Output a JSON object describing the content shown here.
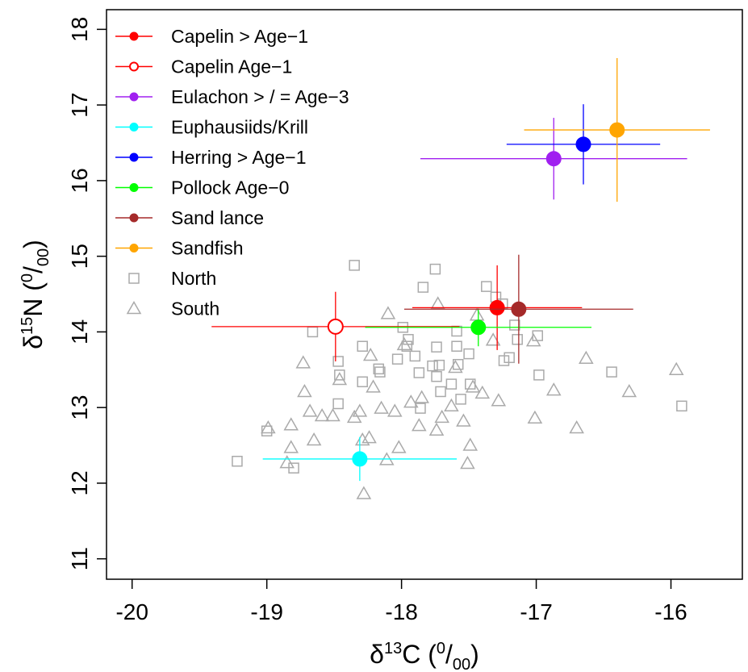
{
  "chart_data": {
    "type": "scatter",
    "xlabel": [
      "δ",
      "13",
      "C (",
      "0",
      "/",
      "00",
      ")"
    ],
    "ylabel": [
      "δ",
      "15",
      "N (",
      "0",
      "/",
      "00",
      ")"
    ],
    "xlim": [
      -20.19,
      -15.47
    ],
    "ylim": [
      10.73,
      18.26
    ],
    "xticks": [
      -20,
      -19,
      -18,
      -17,
      -16
    ],
    "yticks": [
      11,
      12,
      13,
      14,
      15,
      16,
      17,
      18
    ],
    "legend": "top-left",
    "series": [
      {
        "name": "Capelin > Age−1",
        "color": "#ff0000",
        "marker": "filled-circle",
        "x": [
          -17.29
        ],
        "y": [
          14.32
        ],
        "xerr": [
          0.63
        ],
        "yerr": [
          0.56
        ]
      },
      {
        "name": "Capelin Age−1",
        "color": "#ff0000",
        "marker": "open-circle",
        "x": [
          -18.49
        ],
        "y": [
          14.07
        ],
        "xerr": [
          0.92
        ],
        "yerr": [
          0.46
        ]
      },
      {
        "name": "Eulachon > / = Age−3",
        "color": "#a020f0",
        "marker": "filled-circle",
        "x": [
          -16.87
        ],
        "y": [
          16.29
        ],
        "xerr": [
          0.99
        ],
        "yerr": [
          0.54
        ]
      },
      {
        "name": "Euphausiids/Krill",
        "color": "#00ffff",
        "marker": "filled-circle",
        "x": [
          -18.31
        ],
        "y": [
          12.32
        ],
        "xerr": [
          0.72
        ],
        "yerr": [
          0.29
        ]
      },
      {
        "name": "Herring > Age−1",
        "color": "#0000ff",
        "marker": "filled-circle",
        "x": [
          -16.65
        ],
        "y": [
          16.48
        ],
        "xerr": [
          0.57
        ],
        "yerr": [
          0.53
        ]
      },
      {
        "name": "Pollock Age−0",
        "color": "#00ff00",
        "marker": "filled-circle",
        "x": [
          -17.43
        ],
        "y": [
          14.06
        ],
        "xerr": [
          0.84
        ],
        "yerr": [
          0.25
        ]
      },
      {
        "name": "Sand lance",
        "color": "#a52a2a",
        "marker": "filled-circle",
        "x": [
          -17.13
        ],
        "y": [
          14.3
        ],
        "xerr": [
          0.85
        ],
        "yerr": [
          0.72
        ]
      },
      {
        "name": "Sandfish",
        "color": "#ffa500",
        "marker": "filled-circle",
        "x": [
          -16.4
        ],
        "y": [
          16.67
        ],
        "xerr": [
          0.69
        ],
        "yerr": [
          0.95
        ]
      },
      {
        "name": "North",
        "color": "#aaaaaa",
        "marker": "square",
        "x": [
          -19.22,
          -19.0,
          -18.66,
          -18.47,
          -18.46,
          -18.47,
          -18.35,
          -18.29,
          -18.17,
          -18.29,
          -18.03,
          -17.99,
          -17.95,
          -17.87,
          -17.74,
          -17.96,
          -17.86,
          -17.74,
          -17.72,
          -17.77,
          -17.71,
          -17.59,
          -17.59,
          -17.5,
          -17.58,
          -17.49,
          -17.63,
          -17.56,
          -17.37,
          -17.3,
          -17.25,
          -17.2,
          -17.24,
          -17.16,
          -17.14,
          -16.99,
          -16.98,
          -16.44,
          -15.92,
          -18.8,
          -17.84,
          -17.75,
          -17.9,
          -18.16
        ],
        "y": [
          12.29,
          12.69,
          14.0,
          13.61,
          13.43,
          13.05,
          14.88,
          13.81,
          13.51,
          13.34,
          13.64,
          14.06,
          13.9,
          13.46,
          13.41,
          13.81,
          12.99,
          13.8,
          13.56,
          13.55,
          13.21,
          14.01,
          13.81,
          13.71,
          13.57,
          13.31,
          13.31,
          13.11,
          14.6,
          14.46,
          14.37,
          13.66,
          13.62,
          14.09,
          13.9,
          13.95,
          13.43,
          13.47,
          13.02,
          12.2,
          14.59,
          14.83,
          13.68,
          13.47
        ]
      },
      {
        "name": "South",
        "color": "#aaaaaa",
        "marker": "triangle",
        "x": [
          -18.99,
          -18.82,
          -18.82,
          -18.73,
          -18.72,
          -18.68,
          -18.65,
          -18.59,
          -18.51,
          -18.46,
          -18.35,
          -18.31,
          -18.29,
          -18.24,
          -18.28,
          -18.23,
          -18.21,
          -18.15,
          -18.11,
          -18.1,
          -18.02,
          -18.05,
          -17.98,
          -17.93,
          -17.87,
          -17.85,
          -17.74,
          -17.73,
          -17.7,
          -17.63,
          -17.6,
          -17.54,
          -17.51,
          -17.49,
          -17.47,
          -17.44,
          -17.4,
          -17.32,
          -17.28,
          -17.02,
          -17.01,
          -16.87,
          -16.7,
          -16.63,
          -16.31,
          -15.96,
          -18.85
        ],
        "y": [
          12.73,
          12.47,
          12.77,
          13.59,
          13.21,
          12.95,
          12.57,
          12.89,
          12.89,
          13.37,
          12.87,
          12.95,
          12.57,
          12.6,
          11.86,
          13.69,
          13.27,
          12.99,
          12.31,
          14.24,
          12.47,
          12.95,
          13.83,
          13.07,
          12.76,
          13.13,
          12.7,
          14.37,
          12.87,
          13.02,
          13.53,
          12.82,
          12.26,
          12.5,
          13.27,
          14.22,
          13.19,
          13.89,
          13.09,
          13.88,
          12.86,
          13.23,
          12.73,
          13.65,
          13.21,
          13.5,
          12.27
        ]
      }
    ]
  }
}
